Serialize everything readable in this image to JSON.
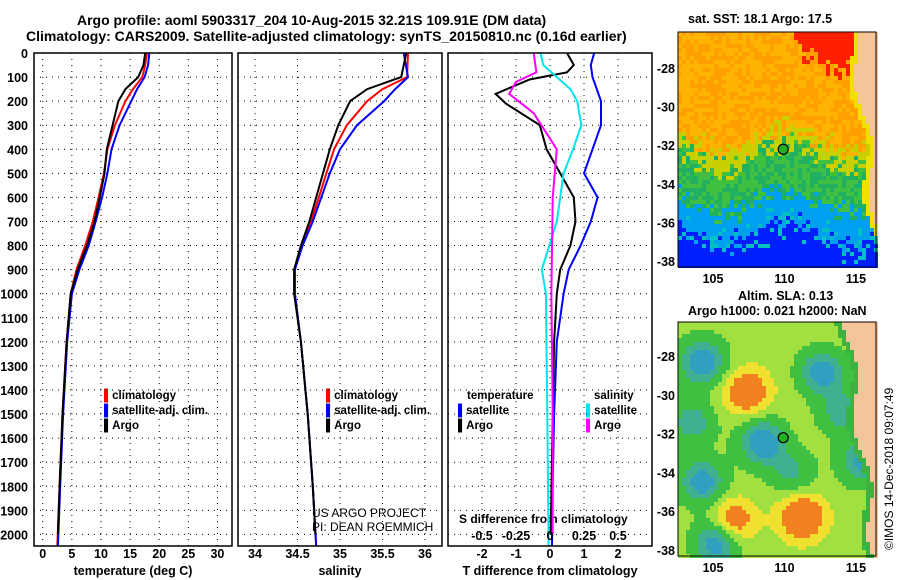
{
  "title_line1": "Argo profile: aoml 5903317_204 10-Aug-2015 32.21S 109.91E (DM data)",
  "title_line2": "Climatology: CARS2009. Satellite-adjusted climatology: synTS_20150810.nc (0.16d earlier)",
  "credit": [
    "US ARGO PROJECT",
    "PI: DEAN ROEMMICH"
  ],
  "copyright": "©IMOS 14-Dec-2018 09:07:49",
  "colors": {
    "climatology": "#ff0000",
    "satellite": "#0000ff",
    "argo": "#000000",
    "sal_satellite": "#00e5ee",
    "sal_argo": "#ff00ff"
  },
  "chart_data": [
    {
      "type": "line",
      "name": "temperature",
      "xlabel": "temperature (deg C)",
      "ylabel": "depth",
      "xlim": [
        -1.5,
        32.5
      ],
      "ylim": [
        2050,
        0
      ],
      "xticks": [
        0,
        5,
        10,
        15,
        20,
        25,
        30
      ],
      "yticks": [
        0,
        100,
        200,
        300,
        400,
        500,
        600,
        700,
        800,
        900,
        1000,
        1100,
        1200,
        1300,
        1400,
        1500,
        1600,
        1700,
        1800,
        1900,
        2000
      ],
      "legend": [
        "climatology",
        "satellite-adj. clim.",
        "Argo"
      ],
      "series": [
        {
          "name": "climatology",
          "color": "#ff0000",
          "points": [
            [
              0,
              17.9
            ],
            [
              50,
              17.6
            ],
            [
              100,
              17.1
            ],
            [
              150,
              15.5
            ],
            [
              200,
              14.2
            ],
            [
              300,
              12.4
            ],
            [
              400,
              11.1
            ],
            [
              500,
              10.5
            ],
            [
              600,
              9.6
            ],
            [
              700,
              8.6
            ],
            [
              800,
              7.3
            ],
            [
              900,
              5.8
            ],
            [
              1000,
              4.8
            ],
            [
              1200,
              4.1
            ],
            [
              1500,
              3.4
            ],
            [
              1800,
              2.9
            ],
            [
              2050,
              2.5
            ]
          ]
        },
        {
          "name": "satellite-adj. clim.",
          "color": "#0000ff",
          "points": [
            [
              0,
              18.3
            ],
            [
              50,
              18.1
            ],
            [
              100,
              17.5
            ],
            [
              150,
              16.2
            ],
            [
              200,
              15.2
            ],
            [
              300,
              13.2
            ],
            [
              400,
              11.8
            ],
            [
              500,
              11.1
            ],
            [
              600,
              10.2
            ],
            [
              700,
              9.1
            ],
            [
              800,
              7.9
            ],
            [
              900,
              6.3
            ],
            [
              1000,
              5.0
            ],
            [
              1200,
              4.2
            ],
            [
              1500,
              3.5
            ],
            [
              1800,
              3.0
            ],
            [
              2050,
              2.6
            ]
          ]
        },
        {
          "name": "Argo",
          "color": "#000000",
          "points": [
            [
              0,
              17.6
            ],
            [
              50,
              17.3
            ],
            [
              100,
              16.4
            ],
            [
              150,
              14.2
            ],
            [
              200,
              13.0
            ],
            [
              300,
              12.0
            ],
            [
              400,
              11.0
            ],
            [
              500,
              10.6
            ],
            [
              600,
              9.8
            ],
            [
              700,
              8.9
            ],
            [
              800,
              7.6
            ],
            [
              900,
              6.0
            ],
            [
              1000,
              4.8
            ],
            [
              1200,
              4.1
            ],
            [
              1500,
              3.4
            ],
            [
              1800,
              2.9
            ],
            [
              2000,
              2.6
            ]
          ]
        }
      ]
    },
    {
      "type": "line",
      "name": "salinity",
      "xlabel": "salinity",
      "xlim": [
        33.8,
        36.2
      ],
      "ylim": [
        2050,
        0
      ],
      "xticks": [
        34,
        34.5,
        35,
        35.5,
        36
      ],
      "legend": [
        "climatology",
        "satellite-adj. clim.",
        "Argo"
      ],
      "series": [
        {
          "name": "climatology",
          "color": "#ff0000",
          "points": [
            [
              0,
              35.8
            ],
            [
              100,
              35.79
            ],
            [
              150,
              35.5
            ],
            [
              200,
              35.32
            ],
            [
              300,
              35.08
            ],
            [
              400,
              34.93
            ],
            [
              500,
              34.84
            ],
            [
              600,
              34.75
            ],
            [
              700,
              34.66
            ],
            [
              800,
              34.55
            ],
            [
              900,
              34.47
            ],
            [
              1000,
              34.47
            ],
            [
              1200,
              34.54
            ],
            [
              1500,
              34.62
            ],
            [
              1800,
              34.68
            ],
            [
              2050,
              34.72
            ]
          ]
        },
        {
          "name": "satellite-adj. clim.",
          "color": "#0000ff",
          "points": [
            [
              0,
              35.75
            ],
            [
              100,
              35.8
            ],
            [
              150,
              35.65
            ],
            [
              200,
              35.52
            ],
            [
              300,
              35.2
            ],
            [
              400,
              35.0
            ],
            [
              500,
              34.88
            ],
            [
              600,
              34.78
            ],
            [
              700,
              34.68
            ],
            [
              800,
              34.56
            ],
            [
              900,
              34.47
            ],
            [
              1000,
              34.47
            ],
            [
              1200,
              34.54
            ],
            [
              1500,
              34.62
            ],
            [
              1800,
              34.68
            ],
            [
              2050,
              34.72
            ]
          ]
        },
        {
          "name": "Argo",
          "color": "#000000",
          "points": [
            [
              0,
              35.78
            ],
            [
              100,
              35.72
            ],
            [
              150,
              35.32
            ],
            [
              200,
              35.12
            ],
            [
              300,
              34.98
            ],
            [
              400,
              34.88
            ],
            [
              500,
              34.8
            ],
            [
              600,
              34.72
            ],
            [
              700,
              34.64
            ],
            [
              800,
              34.54
            ],
            [
              900,
              34.46
            ],
            [
              1000,
              34.46
            ],
            [
              1200,
              34.54
            ],
            [
              1500,
              34.62
            ],
            [
              1800,
              34.68
            ],
            [
              2000,
              34.71
            ]
          ]
        }
      ]
    },
    {
      "type": "line",
      "name": "difference",
      "xlabel": "T difference from climatology",
      "s_label": "S difference from climatology",
      "xlim": [
        -3,
        3
      ],
      "ylim": [
        2050,
        0
      ],
      "xticks": [
        -2,
        -1,
        0,
        1,
        2
      ],
      "s_ticks": [
        "-0.5",
        "-0.25",
        "0",
        "0.25",
        "0.5"
      ],
      "s_scale": 4,
      "legend_temperature": {
        "title": "temperature",
        "items": [
          "satellite",
          "Argo"
        ]
      },
      "legend_salinity": {
        "title": "salinity",
        "items": [
          "satellite",
          "Argo"
        ]
      },
      "series": [
        {
          "name": "T satellite",
          "color": "#0000ff",
          "unit": "T",
          "points": [
            [
              0,
              1.3
            ],
            [
              50,
              1.2
            ],
            [
              100,
              1.25
            ],
            [
              200,
              1.5
            ],
            [
              300,
              1.5
            ],
            [
              400,
              1.25
            ],
            [
              500,
              1.0
            ],
            [
              600,
              1.4
            ],
            [
              700,
              1.2
            ],
            [
              800,
              0.9
            ],
            [
              900,
              0.55
            ],
            [
              1000,
              0.4
            ],
            [
              1200,
              0.2
            ],
            [
              1500,
              0.12
            ],
            [
              1800,
              0.08
            ],
            [
              2050,
              0.06
            ]
          ]
        },
        {
          "name": "T Argo",
          "color": "#000000",
          "unit": "T",
          "points": [
            [
              0,
              0.5
            ],
            [
              50,
              0.7
            ],
            [
              80,
              0.5
            ],
            [
              110,
              -0.6
            ],
            [
              170,
              -1.6
            ],
            [
              210,
              -1.3
            ],
            [
              300,
              -0.3
            ],
            [
              400,
              -0.1
            ],
            [
              500,
              0.3
            ],
            [
              600,
              0.7
            ],
            [
              700,
              0.75
            ],
            [
              800,
              0.6
            ],
            [
              900,
              0.3
            ],
            [
              1000,
              0.2
            ],
            [
              1200,
              0.12
            ],
            [
              1500,
              0.08
            ],
            [
              2000,
              0.02
            ]
          ]
        },
        {
          "name": "S satellite",
          "color": "#00e5ee",
          "unit": "S",
          "points": [
            [
              0,
              -0.07
            ],
            [
              50,
              -0.05
            ],
            [
              100,
              0.05
            ],
            [
              150,
              0.15
            ],
            [
              200,
              0.2
            ],
            [
              300,
              0.23
            ],
            [
              400,
              0.17
            ],
            [
              500,
              0.1
            ],
            [
              700,
              0.05
            ],
            [
              900,
              -0.06
            ],
            [
              1000,
              -0.03
            ],
            [
              1500,
              -0.02
            ],
            [
              2050,
              -0.01
            ]
          ]
        },
        {
          "name": "S Argo",
          "color": "#ff00ff",
          "unit": "S",
          "points": [
            [
              0,
              -0.12
            ],
            [
              80,
              -0.1
            ],
            [
              120,
              -0.25
            ],
            [
              170,
              -0.3
            ],
            [
              250,
              -0.12
            ],
            [
              400,
              0.05
            ],
            [
              600,
              0.02
            ],
            [
              1000,
              0.01
            ],
            [
              1500,
              0.02
            ],
            [
              2000,
              0.02
            ]
          ]
        }
      ]
    },
    {
      "type": "heatmap",
      "name": "sst-map",
      "title": "sat. SST: 18.1 Argo: 17.5",
      "xticks": [
        105,
        110,
        115
      ],
      "yticks": [
        -28,
        -30,
        -32,
        -34,
        -36,
        -38
      ],
      "argo_position": [
        109.91,
        -32.21
      ]
    },
    {
      "type": "heatmap",
      "name": "sla-map",
      "title_line1": "Altim. SLA: 0.13",
      "title_line2": "Argo h1000: 0.021 h2000: NaN",
      "xticks": [
        105,
        110,
        115
      ],
      "yticks": [
        -28,
        -30,
        -32,
        -34,
        -36,
        -38
      ],
      "argo_position": [
        109.91,
        -32.21
      ]
    }
  ]
}
